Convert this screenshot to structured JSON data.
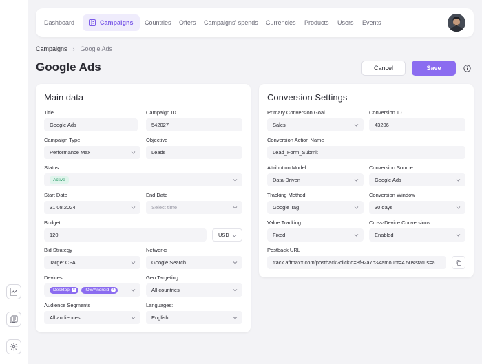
{
  "nav": {
    "items": [
      "Dashboard",
      "Campaigns",
      "Countries",
      "Offers",
      "Campaigns' spends",
      "Currencies",
      "Products",
      "Users",
      "Events"
    ],
    "active_index": 1
  },
  "breadcrumb": {
    "root": "Campaigns",
    "current": "Google Ads"
  },
  "page": {
    "title": "Google Ads",
    "cancel_label": "Cancel",
    "save_label": "Save"
  },
  "main": {
    "title": "Main data",
    "title_label": "Title",
    "title_value": "Google Ads",
    "campaign_id_label": "Campaign ID",
    "campaign_id_value": "542027",
    "campaign_type_label": "Campaign Type",
    "campaign_type_value": "Performance Max",
    "objective_label": "Objective",
    "objective_value": "Leads",
    "status_label": "Status",
    "status_value": "Active",
    "start_date_label": "Start Date",
    "start_date_value": "31.08.2024",
    "end_date_label": "End Date",
    "end_date_placeholder": "Select time",
    "budget_label": "Budget",
    "budget_value": "120",
    "currency_value": "USD",
    "bid_strategy_label": "Bid Strategy",
    "bid_strategy_value": "Target CPA",
    "networks_label": "Networks",
    "networks_value": "Google Search",
    "devices_label": "Devices",
    "devices": [
      "Desktop",
      "IOS/Android"
    ],
    "geo_label": "Geo Targeting",
    "geo_value": "All countries",
    "audience_label": "Audience Segments",
    "audience_value": "All audiences",
    "languages_label": "Languages:",
    "languages_value": "English"
  },
  "conversion": {
    "title": "Conversion Settings",
    "goal_label": "Primary Conversion Goal",
    "goal_value": "Sales",
    "conv_id_label": "Conversion ID",
    "conv_id_value": "43206",
    "action_label": "Conversion Action Name",
    "action_value": "Lead_Form_Submit",
    "attribution_label": "Attribution Model",
    "attribution_value": "Data-Driven",
    "source_label": "Conversion Source",
    "source_value": "Google Ads",
    "tracking_label": "Tracking Method",
    "tracking_value": "Google Tag",
    "window_label": "Conversion Window",
    "window_value": "30 days",
    "value_label": "Value Tracking",
    "value_value": "Fixed",
    "cross_label": "Cross-Device Conversions",
    "cross_value": "Enabled",
    "postback_label": "Postback URL",
    "postback_value": "track.affmaxx.com/postback?clickid=8f92a7b3&amount=4.50&status=a..."
  },
  "icons": {
    "nav_active": "campaigns-icon",
    "rail": [
      "chart-icon",
      "reports-icon",
      "settings-icon"
    ],
    "info": "info-icon",
    "copy": "copy-icon"
  },
  "colors": {
    "accent": "#8b6cf0",
    "accent_bg": "#efecfc",
    "active_badge": "#2e9c6b"
  }
}
